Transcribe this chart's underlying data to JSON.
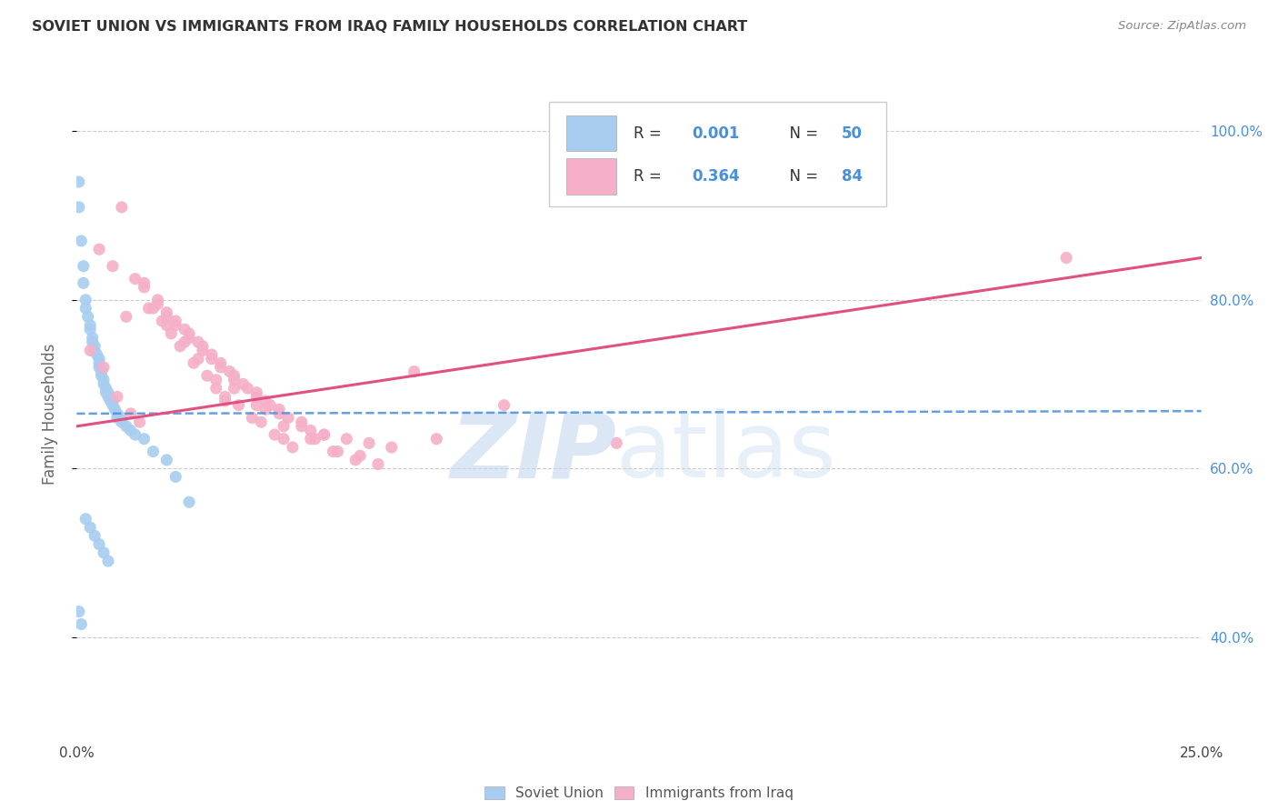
{
  "title": "SOVIET UNION VS IMMIGRANTS FROM IRAQ FAMILY HOUSEHOLDS CORRELATION CHART",
  "source": "Source: ZipAtlas.com",
  "ylabel": "Family Households",
  "legend_label1": "Soviet Union",
  "legend_label2": "Immigrants from Iraq",
  "R1": "0.001",
  "N1": "50",
  "R2": "0.364",
  "N2": "84",
  "color_blue": "#a8cdf0",
  "color_pink": "#f5afc8",
  "color_blue_dark": "#4a90d9",
  "color_pink_dark": "#e05080",
  "xlim": [
    0.0,
    25.0
  ],
  "ylim": [
    28.0,
    105.0
  ],
  "blue_scatter_x": [
    0.05,
    0.05,
    0.1,
    0.15,
    0.15,
    0.2,
    0.2,
    0.25,
    0.3,
    0.3,
    0.35,
    0.35,
    0.4,
    0.4,
    0.45,
    0.5,
    0.5,
    0.5,
    0.55,
    0.55,
    0.6,
    0.6,
    0.65,
    0.65,
    0.7,
    0.7,
    0.75,
    0.8,
    0.8,
    0.85,
    0.9,
    0.9,
    1.0,
    1.0,
    1.1,
    1.2,
    1.3,
    1.5,
    1.7,
    2.0,
    2.2,
    2.5,
    0.05,
    0.1,
    0.2,
    0.3,
    0.4,
    0.5,
    0.6,
    0.7
  ],
  "blue_scatter_y": [
    94.0,
    91.0,
    87.0,
    84.0,
    82.0,
    80.0,
    79.0,
    78.0,
    77.0,
    76.5,
    75.5,
    75.0,
    74.5,
    74.0,
    73.5,
    73.0,
    72.5,
    72.0,
    71.5,
    71.0,
    70.5,
    70.0,
    69.5,
    69.0,
    69.0,
    68.5,
    68.0,
    68.0,
    67.5,
    67.0,
    66.5,
    66.0,
    66.0,
    65.5,
    65.0,
    64.5,
    64.0,
    63.5,
    62.0,
    61.0,
    59.0,
    56.0,
    43.0,
    41.5,
    54.0,
    53.0,
    52.0,
    51.0,
    50.0,
    49.0
  ],
  "pink_scatter_x": [
    0.5,
    0.8,
    1.0,
    1.5,
    1.5,
    1.8,
    1.8,
    2.0,
    2.0,
    2.2,
    2.2,
    2.4,
    2.5,
    2.5,
    2.7,
    2.8,
    2.8,
    3.0,
    3.0,
    3.2,
    3.2,
    3.4,
    3.5,
    3.5,
    3.7,
    3.8,
    4.0,
    4.0,
    4.2,
    4.3,
    4.5,
    4.5,
    4.7,
    5.0,
    5.0,
    5.2,
    5.5,
    6.0,
    6.5,
    7.0,
    0.3,
    0.6,
    0.9,
    1.2,
    1.4,
    2.3,
    2.6,
    2.9,
    3.1,
    3.3,
    3.6,
    3.9,
    4.1,
    4.4,
    4.6,
    4.8,
    5.3,
    5.7,
    6.2,
    6.7,
    1.1,
    1.6,
    1.9,
    2.1,
    2.7,
    3.1,
    3.5,
    4.0,
    4.6,
    5.2,
    5.8,
    6.3,
    8.0,
    9.5,
    12.0,
    22.0,
    1.3,
    1.7,
    2.4,
    2.0,
    3.3,
    4.2,
    5.5,
    7.5
  ],
  "pink_scatter_y": [
    86.0,
    84.0,
    91.0,
    82.0,
    81.5,
    80.0,
    79.5,
    78.5,
    78.0,
    77.5,
    77.0,
    76.5,
    76.0,
    75.5,
    75.0,
    74.5,
    74.0,
    73.5,
    73.0,
    72.5,
    72.0,
    71.5,
    71.0,
    70.5,
    70.0,
    69.5,
    69.0,
    68.5,
    68.0,
    67.5,
    67.0,
    66.5,
    66.0,
    65.5,
    65.0,
    64.5,
    64.0,
    63.5,
    63.0,
    62.5,
    74.0,
    72.0,
    68.5,
    66.5,
    65.5,
    74.5,
    72.5,
    71.0,
    69.5,
    68.5,
    67.5,
    66.0,
    65.5,
    64.0,
    63.5,
    62.5,
    63.5,
    62.0,
    61.0,
    60.5,
    78.0,
    79.0,
    77.5,
    76.0,
    73.0,
    70.5,
    69.5,
    67.5,
    65.0,
    63.5,
    62.0,
    61.5,
    63.5,
    67.5,
    63.0,
    85.0,
    82.5,
    79.0,
    75.0,
    77.0,
    68.0,
    67.0,
    64.0,
    71.5
  ],
  "blue_trend_x": [
    0.0,
    25.0
  ],
  "blue_trend_y": [
    66.5,
    66.8
  ],
  "pink_trend_x": [
    0.0,
    25.0
  ],
  "pink_trend_y": [
    65.0,
    85.0
  ],
  "grid_yticks": [
    40,
    60,
    80,
    100
  ],
  "grid_color": "#cccccc",
  "bg_color": "#ffffff"
}
